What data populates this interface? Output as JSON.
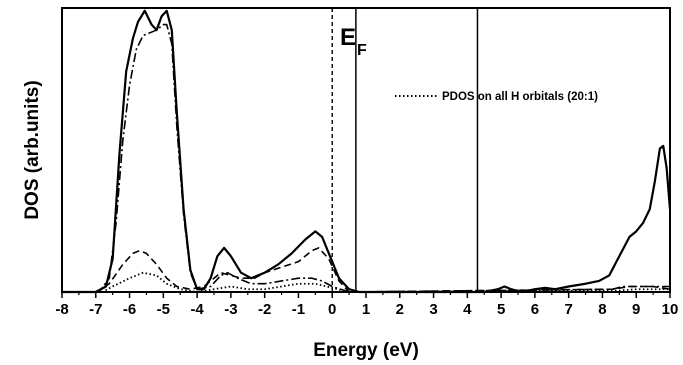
{
  "chart_data": {
    "type": "line",
    "xlabel": "Energy (eV)",
    "ylabel": "DOS (arb.units)",
    "xlim": [
      -8,
      10
    ],
    "xticks": [
      "-8",
      "-7",
      "-6",
      "-5",
      "-4",
      "-3",
      "-2",
      "-1",
      "0",
      "1",
      "2",
      "3",
      "4",
      "5",
      "6",
      "7",
      "8",
      "9",
      "10"
    ],
    "y_ticks_shown": false,
    "grid": false,
    "legend": {
      "position": "top-right",
      "entries": [
        {
          "label": "PDOS on all H orbitals (20:1)",
          "style": "dotted"
        }
      ]
    },
    "annotations": [
      {
        "text": "E",
        "subscript": "F",
        "type": "label"
      },
      {
        "type": "vline",
        "x": 0,
        "style": "dashed"
      },
      {
        "type": "vline",
        "x": 0.7,
        "style": "solid"
      },
      {
        "type": "vline",
        "x": 4.3,
        "style": "solid"
      }
    ],
    "series": [
      {
        "style": "solid",
        "points": [
          [
            -8,
            0
          ],
          [
            -7,
            0
          ],
          [
            -6.7,
            0.02
          ],
          [
            -6.5,
            0.12
          ],
          [
            -6.3,
            0.5
          ],
          [
            -6.1,
            0.8
          ],
          [
            -5.9,
            0.92
          ],
          [
            -5.75,
            0.98
          ],
          [
            -5.55,
            1.02
          ],
          [
            -5.35,
            0.97
          ],
          [
            -5.2,
            0.95
          ],
          [
            -5.05,
            1.0
          ],
          [
            -4.9,
            1.02
          ],
          [
            -4.75,
            0.95
          ],
          [
            -4.6,
            0.65
          ],
          [
            -4.4,
            0.3
          ],
          [
            -4.2,
            0.08
          ],
          [
            -4.0,
            0.01
          ],
          [
            -3.8,
            0.01
          ],
          [
            -3.6,
            0.05
          ],
          [
            -3.4,
            0.13
          ],
          [
            -3.2,
            0.16
          ],
          [
            -3.0,
            0.13
          ],
          [
            -2.7,
            0.07
          ],
          [
            -2.4,
            0.05
          ],
          [
            -2.0,
            0.07
          ],
          [
            -1.6,
            0.1
          ],
          [
            -1.2,
            0.14
          ],
          [
            -0.8,
            0.19
          ],
          [
            -0.5,
            0.22
          ],
          [
            -0.3,
            0.2
          ],
          [
            -0.1,
            0.14
          ],
          [
            0.2,
            0.05
          ],
          [
            0.5,
            0.01
          ],
          [
            0.8,
            0.0
          ],
          [
            4.5,
            0.0
          ],
          [
            4.9,
            0.01
          ],
          [
            5.1,
            0.02
          ],
          [
            5.3,
            0.01
          ],
          [
            5.6,
            0.0
          ],
          [
            6.0,
            0.01
          ],
          [
            6.3,
            0.015
          ],
          [
            6.6,
            0.01
          ],
          [
            7.0,
            0.02
          ],
          [
            7.5,
            0.03
          ],
          [
            7.9,
            0.04
          ],
          [
            8.2,
            0.06
          ],
          [
            8.5,
            0.13
          ],
          [
            8.8,
            0.2
          ],
          [
            9.0,
            0.22
          ],
          [
            9.2,
            0.25
          ],
          [
            9.4,
            0.3
          ],
          [
            9.55,
            0.4
          ],
          [
            9.7,
            0.52
          ],
          [
            9.8,
            0.53
          ],
          [
            9.9,
            0.45
          ],
          [
            10,
            0.3
          ]
        ]
      },
      {
        "style": "dash-dot",
        "points": [
          [
            -8,
            0
          ],
          [
            -6.9,
            0
          ],
          [
            -6.6,
            0.05
          ],
          [
            -6.4,
            0.25
          ],
          [
            -6.2,
            0.55
          ],
          [
            -6.0,
            0.75
          ],
          [
            -5.8,
            0.88
          ],
          [
            -5.6,
            0.93
          ],
          [
            -5.4,
            0.94
          ],
          [
            -5.2,
            0.95
          ],
          [
            -5.0,
            0.97
          ],
          [
            -4.9,
            0.97
          ],
          [
            -4.75,
            0.9
          ],
          [
            -4.6,
            0.6
          ],
          [
            -4.4,
            0.28
          ],
          [
            -4.2,
            0.07
          ],
          [
            -4.0,
            0.01
          ],
          [
            -3.6,
            0.02
          ],
          [
            -3.3,
            0.06
          ],
          [
            -3.1,
            0.07
          ],
          [
            -2.8,
            0.05
          ],
          [
            -2.4,
            0.03
          ],
          [
            -2.0,
            0.03
          ],
          [
            -1.5,
            0.04
          ],
          [
            -1.0,
            0.05
          ],
          [
            -0.6,
            0.05
          ],
          [
            -0.3,
            0.04
          ],
          [
            0.0,
            0.02
          ],
          [
            0.5,
            0.0
          ],
          [
            8.3,
            0.01
          ],
          [
            8.6,
            0.02
          ],
          [
            9.0,
            0.02
          ],
          [
            9.4,
            0.02
          ],
          [
            9.7,
            0.02
          ],
          [
            10,
            0.02
          ]
        ]
      },
      {
        "style": "dashed",
        "points": [
          [
            -8,
            0
          ],
          [
            -7.0,
            0
          ],
          [
            -6.6,
            0.03
          ],
          [
            -6.2,
            0.1
          ],
          [
            -5.9,
            0.14
          ],
          [
            -5.7,
            0.15
          ],
          [
            -5.5,
            0.14
          ],
          [
            -5.2,
            0.1
          ],
          [
            -4.9,
            0.05
          ],
          [
            -4.6,
            0.02
          ],
          [
            -4.2,
            0.01
          ],
          [
            -3.8,
            0.02
          ],
          [
            -3.5,
            0.05
          ],
          [
            -3.3,
            0.07
          ],
          [
            -3.0,
            0.06
          ],
          [
            -2.7,
            0.05
          ],
          [
            -2.3,
            0.05
          ],
          [
            -2.0,
            0.07
          ],
          [
            -1.5,
            0.09
          ],
          [
            -1.0,
            0.11
          ],
          [
            -0.6,
            0.15
          ],
          [
            -0.4,
            0.16
          ],
          [
            -0.1,
            0.12
          ],
          [
            0.2,
            0.04
          ],
          [
            0.5,
            0.0
          ],
          [
            8.3,
            0.01
          ],
          [
            8.8,
            0.02
          ],
          [
            9.5,
            0.02
          ],
          [
            10,
            0.01
          ]
        ]
      },
      {
        "name": "PDOS on all H orbitals (20:1)",
        "style": "dotted",
        "points": [
          [
            -8,
            0
          ],
          [
            -6.8,
            0
          ],
          [
            -6.5,
            0.02
          ],
          [
            -6.0,
            0.05
          ],
          [
            -5.6,
            0.07
          ],
          [
            -5.2,
            0.06
          ],
          [
            -4.9,
            0.03
          ],
          [
            -4.5,
            0.01
          ],
          [
            -4.0,
            0.0
          ],
          [
            -3.5,
            0.01
          ],
          [
            -3.0,
            0.02
          ],
          [
            -2.5,
            0.01
          ],
          [
            -2.0,
            0.01
          ],
          [
            -1.5,
            0.02
          ],
          [
            -1.0,
            0.03
          ],
          [
            -0.5,
            0.03
          ],
          [
            0.0,
            0.015
          ],
          [
            0.5,
            0.0
          ],
          [
            8.5,
            0.005
          ],
          [
            9.0,
            0.01
          ],
          [
            9.5,
            0.01
          ],
          [
            10,
            0.01
          ]
        ]
      }
    ]
  }
}
